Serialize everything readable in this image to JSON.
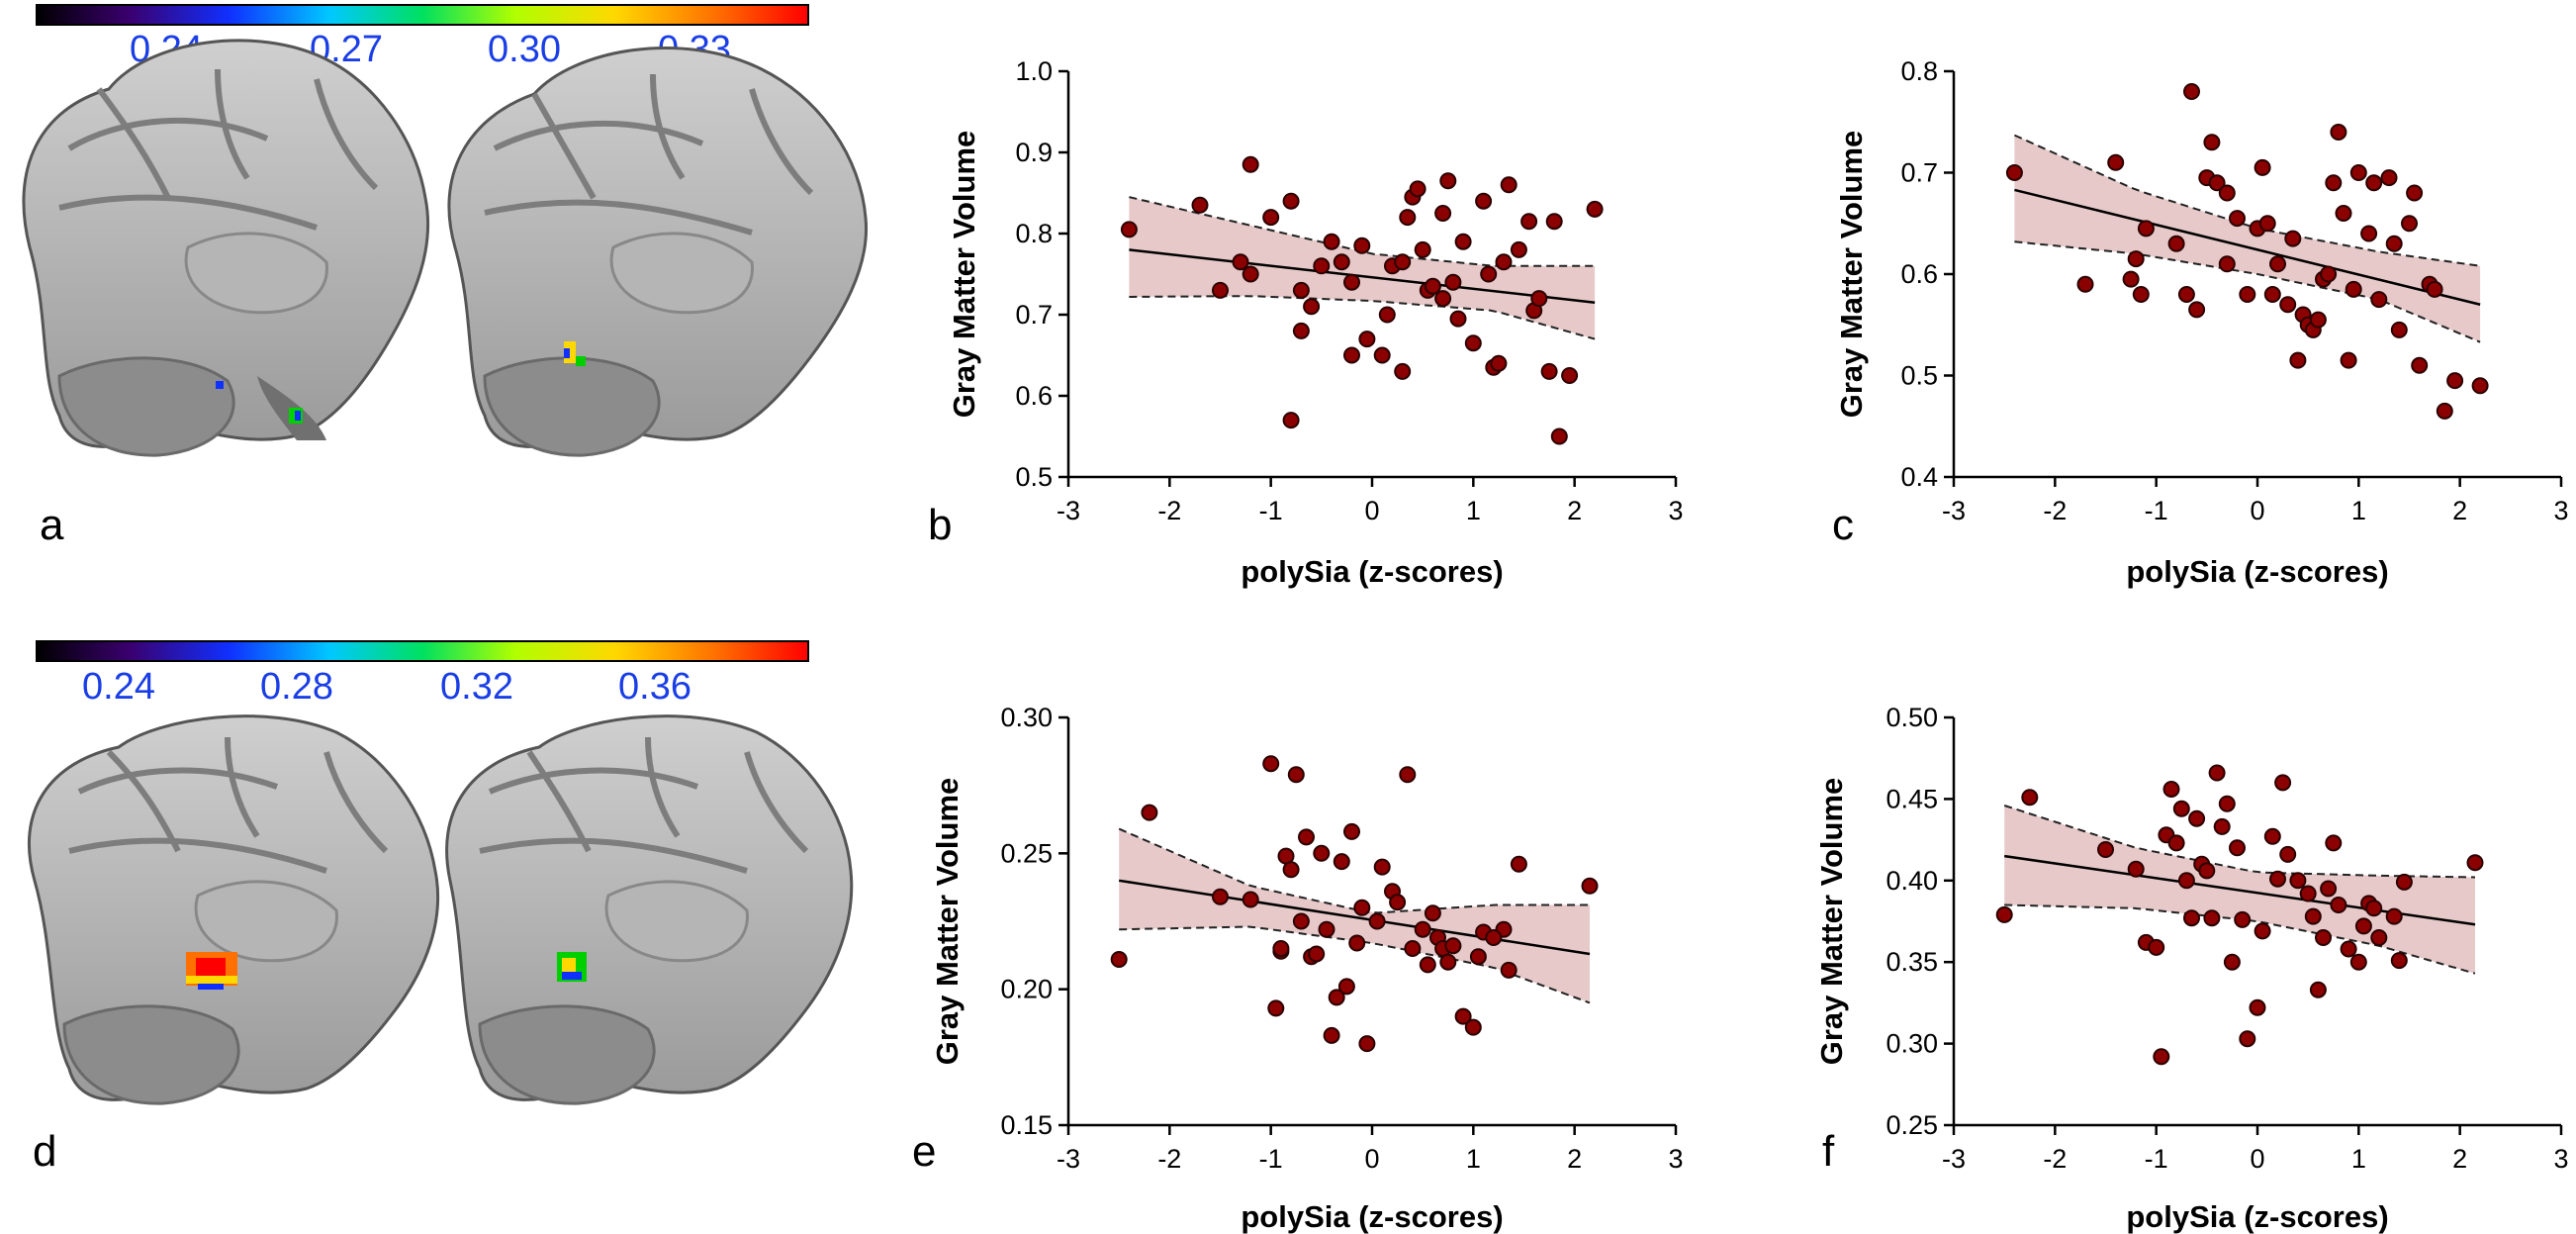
{
  "panel_labels": {
    "a": "a",
    "b": "b",
    "c": "c",
    "d": "d",
    "e": "e",
    "f": "f"
  },
  "colorbars": [
    {
      "name": "colorbar-top",
      "ticks": [
        "0.24",
        "0.27",
        "0.30",
        "0.33"
      ]
    },
    {
      "name": "colorbar-bottom",
      "ticks": [
        "0.24",
        "0.28",
        "0.32",
        "0.36"
      ]
    }
  ],
  "colors": {
    "point_fill": "#8b0000",
    "point_stroke": "#2b0000",
    "band_fill": "#e7c9c9",
    "line": "#000000",
    "tick_label_blue": "#1a3ee6"
  },
  "chart_data": [
    {
      "panel": "b",
      "type": "scatter",
      "xlabel": "polySia (z-scores)",
      "ylabel": "Gray Matter Volume",
      "xlim": [
        -3,
        3
      ],
      "ylim": [
        0.5,
        1.0
      ],
      "xticks": [
        "-3",
        "-2",
        "-1",
        "0",
        "1",
        "2",
        "3"
      ],
      "yticks": [
        "0.5",
        "0.6",
        "0.7",
        "0.8",
        "0.9",
        "1.0"
      ],
      "regression": {
        "x": [
          -2.4,
          2.2
        ],
        "y": [
          0.78,
          0.715
        ]
      },
      "ci_upper": {
        "x": [
          -2.4,
          -1.2,
          0,
          1.2,
          2.2
        ],
        "y": [
          0.845,
          0.81,
          0.775,
          0.76,
          0.76
        ]
      },
      "ci_lower": {
        "x": [
          -2.4,
          -1.2,
          0,
          1.2,
          2.2
        ],
        "y": [
          0.722,
          0.723,
          0.717,
          0.705,
          0.67
        ]
      },
      "points": [
        [
          -2.4,
          0.805
        ],
        [
          -1.7,
          0.835
        ],
        [
          -1.2,
          0.885
        ],
        [
          -1.0,
          0.82
        ],
        [
          -1.3,
          0.765
        ],
        [
          -1.5,
          0.73
        ],
        [
          -1.2,
          0.75
        ],
        [
          -0.8,
          0.84
        ],
        [
          -0.7,
          0.73
        ],
        [
          -0.7,
          0.68
        ],
        [
          -0.6,
          0.71
        ],
        [
          -0.5,
          0.76
        ],
        [
          -0.4,
          0.79
        ],
        [
          -0.3,
          0.765
        ],
        [
          -0.2,
          0.65
        ],
        [
          -0.2,
          0.74
        ],
        [
          -0.1,
          0.785
        ],
        [
          -0.05,
          0.67
        ],
        [
          0.1,
          0.65
        ],
        [
          0.15,
          0.7
        ],
        [
          0.2,
          0.76
        ],
        [
          0.3,
          0.765
        ],
        [
          0.35,
          0.82
        ],
        [
          0.4,
          0.845
        ],
        [
          0.45,
          0.855
        ],
        [
          0.5,
          0.78
        ],
        [
          0.55,
          0.73
        ],
        [
          0.6,
          0.735
        ],
        [
          0.7,
          0.72
        ],
        [
          0.7,
          0.825
        ],
        [
          0.75,
          0.865
        ],
        [
          0.8,
          0.74
        ],
        [
          0.85,
          0.695
        ],
        [
          0.9,
          0.79
        ],
        [
          1.0,
          0.665
        ],
        [
          1.1,
          0.84
        ],
        [
          1.15,
          0.75
        ],
        [
          1.2,
          0.635
        ],
        [
          1.3,
          0.765
        ],
        [
          1.35,
          0.86
        ],
        [
          1.45,
          0.78
        ],
        [
          1.55,
          0.815
        ],
        [
          1.6,
          0.705
        ],
        [
          1.65,
          0.72
        ],
        [
          1.75,
          0.63
        ],
        [
          1.8,
          0.815
        ],
        [
          1.85,
          0.55
        ],
        [
          1.95,
          0.625
        ],
        [
          2.2,
          0.83
        ],
        [
          -0.8,
          0.57
        ],
        [
          1.25,
          0.64
        ],
        [
          0.3,
          0.63
        ]
      ]
    },
    {
      "panel": "c",
      "type": "scatter",
      "xlabel": "polySia (z-scores)",
      "ylabel": "Gray Matter Volume",
      "xlim": [
        -3,
        3
      ],
      "ylim": [
        0.4,
        0.8
      ],
      "xticks": [
        "-3",
        "-2",
        "-1",
        "0",
        "1",
        "2",
        "3"
      ],
      "yticks": [
        "0.4",
        "0.5",
        "0.6",
        "0.7",
        "0.8"
      ],
      "regression": {
        "x": [
          -2.4,
          2.2
        ],
        "y": [
          0.683,
          0.57
        ]
      },
      "ci_upper": {
        "x": [
          -2.4,
          -1.2,
          0,
          1.2,
          2.2
        ],
        "y": [
          0.737,
          0.683,
          0.645,
          0.622,
          0.608
        ]
      },
      "ci_lower": {
        "x": [
          -2.4,
          -1.2,
          0,
          1.2,
          2.2
        ],
        "y": [
          0.632,
          0.62,
          0.6,
          0.575,
          0.533
        ]
      },
      "points": [
        [
          -2.4,
          0.7
        ],
        [
          -1.7,
          0.59
        ],
        [
          -1.4,
          0.71
        ],
        [
          -1.2,
          0.615
        ],
        [
          -1.1,
          0.645
        ],
        [
          -1.25,
          0.595
        ],
        [
          -1.15,
          0.58
        ],
        [
          -0.8,
          0.63
        ],
        [
          -0.7,
          0.58
        ],
        [
          -0.65,
          0.78
        ],
        [
          -0.6,
          0.565
        ],
        [
          -0.5,
          0.695
        ],
        [
          -0.45,
          0.73
        ],
        [
          -0.4,
          0.69
        ],
        [
          -0.3,
          0.68
        ],
        [
          -0.3,
          0.61
        ],
        [
          -0.2,
          0.655
        ],
        [
          -0.1,
          0.58
        ],
        [
          0.0,
          0.645
        ],
        [
          0.05,
          0.705
        ],
        [
          0.1,
          0.65
        ],
        [
          0.15,
          0.58
        ],
        [
          0.2,
          0.61
        ],
        [
          0.3,
          0.57
        ],
        [
          0.35,
          0.635
        ],
        [
          0.4,
          0.515
        ],
        [
          0.45,
          0.56
        ],
        [
          0.5,
          0.55
        ],
        [
          0.55,
          0.545
        ],
        [
          0.6,
          0.555
        ],
        [
          0.65,
          0.595
        ],
        [
          0.7,
          0.6
        ],
        [
          0.75,
          0.69
        ],
        [
          0.8,
          0.74
        ],
        [
          0.85,
          0.66
        ],
        [
          0.9,
          0.515
        ],
        [
          0.95,
          0.585
        ],
        [
          1.0,
          0.7
        ],
        [
          1.1,
          0.64
        ],
        [
          1.15,
          0.69
        ],
        [
          1.2,
          0.575
        ],
        [
          1.3,
          0.695
        ],
        [
          1.35,
          0.63
        ],
        [
          1.4,
          0.545
        ],
        [
          1.5,
          0.65
        ],
        [
          1.55,
          0.68
        ],
        [
          1.6,
          0.51
        ],
        [
          1.7,
          0.59
        ],
        [
          1.75,
          0.585
        ],
        [
          1.85,
          0.465
        ],
        [
          1.95,
          0.495
        ],
        [
          2.2,
          0.49
        ]
      ]
    },
    {
      "panel": "e",
      "type": "scatter",
      "xlabel": "polySia (z-scores)",
      "ylabel": "Gray Matter Volume",
      "xlim": [
        -3,
        3
      ],
      "ylim": [
        0.15,
        0.3
      ],
      "xticks": [
        "-3",
        "-2",
        "-1",
        "0",
        "1",
        "2",
        "3"
      ],
      "yticks": [
        "0.15",
        "0.20",
        "0.25",
        "0.30"
      ],
      "regression": {
        "x": [
          -2.5,
          2.15
        ],
        "y": [
          0.24,
          0.213
        ]
      },
      "ci_upper": {
        "x": [
          -2.5,
          -1.2,
          0,
          1.2,
          2.15
        ],
        "y": [
          0.259,
          0.238,
          0.228,
          0.231,
          0.231
        ]
      },
      "ci_lower": {
        "x": [
          -2.5,
          -1.2,
          0,
          1.2,
          2.15
        ],
        "y": [
          0.222,
          0.223,
          0.217,
          0.208,
          0.195
        ]
      },
      "points": [
        [
          -2.5,
          0.211
        ],
        [
          -2.2,
          0.265
        ],
        [
          -1.5,
          0.234
        ],
        [
          -1.2,
          0.233
        ],
        [
          -1.0,
          0.283
        ],
        [
          -0.95,
          0.193
        ],
        [
          -0.9,
          0.214
        ],
        [
          -0.85,
          0.249
        ],
        [
          -0.8,
          0.244
        ],
        [
          -0.75,
          0.279
        ],
        [
          -0.7,
          0.225
        ],
        [
          -0.65,
          0.256
        ],
        [
          -0.6,
          0.212
        ],
        [
          -0.55,
          0.213
        ],
        [
          -0.5,
          0.25
        ],
        [
          -0.45,
          0.222
        ],
        [
          -0.4,
          0.183
        ],
        [
          -0.35,
          0.197
        ],
        [
          -0.3,
          0.247
        ],
        [
          -0.25,
          0.201
        ],
        [
          -0.2,
          0.258
        ],
        [
          -0.15,
          0.217
        ],
        [
          -0.1,
          0.23
        ],
        [
          -0.05,
          0.18
        ],
        [
          0.05,
          0.225
        ],
        [
          0.1,
          0.245
        ],
        [
          0.2,
          0.236
        ],
        [
          0.25,
          0.232
        ],
        [
          0.35,
          0.279
        ],
        [
          0.4,
          0.215
        ],
        [
          0.5,
          0.222
        ],
        [
          0.55,
          0.209
        ],
        [
          0.6,
          0.228
        ],
        [
          0.65,
          0.219
        ],
        [
          0.7,
          0.215
        ],
        [
          0.8,
          0.216
        ],
        [
          0.9,
          0.19
        ],
        [
          1.0,
          0.186
        ],
        [
          1.05,
          0.212
        ],
        [
          1.1,
          0.221
        ],
        [
          1.3,
          0.222
        ],
        [
          1.35,
          0.207
        ],
        [
          1.45,
          0.246
        ],
        [
          2.15,
          0.238
        ],
        [
          1.2,
          0.219
        ],
        [
          -0.9,
          0.215
        ],
        [
          0.75,
          0.21
        ]
      ]
    },
    {
      "panel": "f",
      "type": "scatter",
      "xlabel": "polySia (z-scores)",
      "ylabel": "Gray Matter Volume",
      "xlim": [
        -3,
        3
      ],
      "ylim": [
        0.25,
        0.5
      ],
      "xticks": [
        "-3",
        "-2",
        "-1",
        "0",
        "1",
        "2",
        "3"
      ],
      "yticks": [
        "0.25",
        "0.30",
        "0.35",
        "0.40",
        "0.45",
        "0.50"
      ],
      "regression": {
        "x": [
          -2.5,
          2.15
        ],
        "y": [
          0.415,
          0.373
        ]
      },
      "ci_upper": {
        "x": [
          -2.5,
          -1.2,
          0,
          1.2,
          2.15
        ],
        "y": [
          0.446,
          0.42,
          0.405,
          0.403,
          0.402
        ]
      },
      "ci_lower": {
        "x": [
          -2.5,
          -1.2,
          0,
          1.2,
          2.15
        ],
        "y": [
          0.385,
          0.383,
          0.375,
          0.36,
          0.343
        ]
      },
      "points": [
        [
          -2.5,
          0.379
        ],
        [
          -2.25,
          0.451
        ],
        [
          -1.5,
          0.419
        ],
        [
          -1.2,
          0.407
        ],
        [
          -1.1,
          0.362
        ],
        [
          -1.0,
          0.359
        ],
        [
          -0.95,
          0.292
        ],
        [
          -0.9,
          0.428
        ],
        [
          -0.85,
          0.456
        ],
        [
          -0.8,
          0.423
        ],
        [
          -0.75,
          0.444
        ],
        [
          -0.7,
          0.4
        ],
        [
          -0.65,
          0.377
        ],
        [
          -0.6,
          0.438
        ],
        [
          -0.55,
          0.41
        ],
        [
          -0.5,
          0.406
        ],
        [
          -0.45,
          0.377
        ],
        [
          -0.4,
          0.466
        ],
        [
          -0.35,
          0.433
        ],
        [
          -0.3,
          0.447
        ],
        [
          -0.25,
          0.35
        ],
        [
          -0.2,
          0.42
        ],
        [
          -0.15,
          0.376
        ],
        [
          -0.1,
          0.303
        ],
        [
          0.0,
          0.322
        ],
        [
          0.05,
          0.369
        ],
        [
          0.15,
          0.427
        ],
        [
          0.2,
          0.401
        ],
        [
          0.25,
          0.46
        ],
        [
          0.3,
          0.416
        ],
        [
          0.4,
          0.4
        ],
        [
          0.5,
          0.392
        ],
        [
          0.55,
          0.378
        ],
        [
          0.6,
          0.333
        ],
        [
          0.65,
          0.365
        ],
        [
          0.7,
          0.395
        ],
        [
          0.75,
          0.423
        ],
        [
          0.8,
          0.385
        ],
        [
          0.9,
          0.358
        ],
        [
          1.0,
          0.35
        ],
        [
          1.05,
          0.372
        ],
        [
          1.1,
          0.386
        ],
        [
          1.15,
          0.383
        ],
        [
          1.2,
          0.365
        ],
        [
          1.35,
          0.378
        ],
        [
          1.4,
          0.351
        ],
        [
          1.45,
          0.399
        ],
        [
          2.15,
          0.411
        ]
      ]
    }
  ]
}
